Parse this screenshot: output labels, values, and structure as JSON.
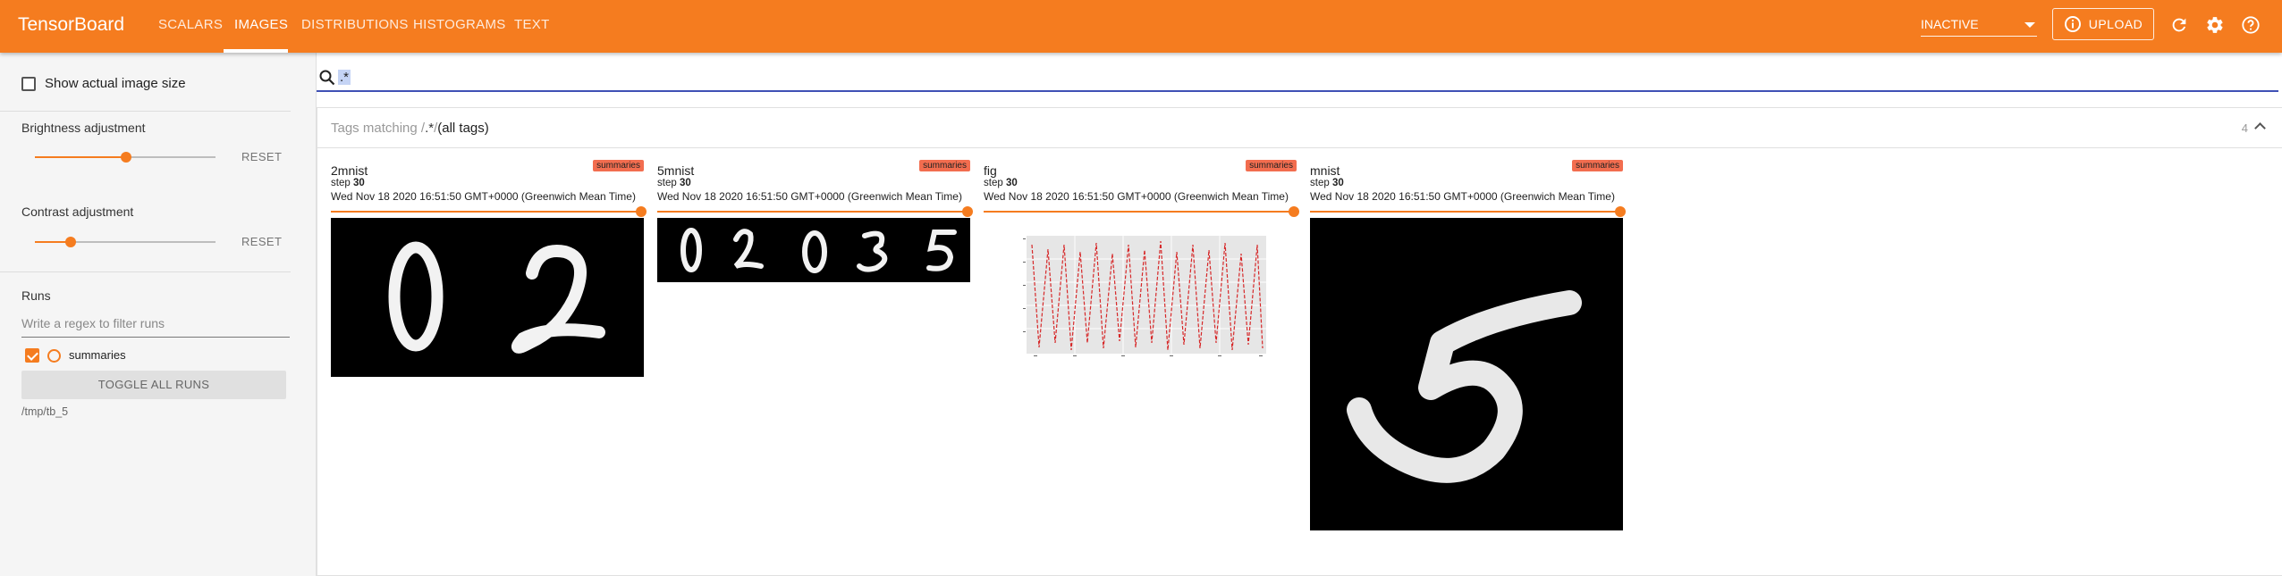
{
  "header": {
    "brand": "TensorBoard",
    "tabs": [
      {
        "label": "SCALARS",
        "active": false
      },
      {
        "label": "IMAGES",
        "active": true
      },
      {
        "label": "DISTRIBUTIONS",
        "active": false
      },
      {
        "label": "HISTOGRAMS",
        "active": false
      },
      {
        "label": "TEXT",
        "active": false
      }
    ],
    "status_select": "INACTIVE",
    "upload_label": "UPLOAD",
    "icons": [
      "info-icon",
      "refresh-icon",
      "settings-gear-icon",
      "help-icon"
    ],
    "accent_color": "#f57c1f"
  },
  "sidebar": {
    "show_actual_size_label": "Show actual image size",
    "show_actual_size_checked": false,
    "brightness": {
      "label": "Brightness adjustment",
      "reset": "RESET",
      "level": 0.5
    },
    "contrast": {
      "label": "Contrast adjustment",
      "reset": "RESET",
      "level": 0.2
    },
    "runs_title": "Runs",
    "filter_placeholder": "Write a regex to filter runs",
    "runs": [
      {
        "name": "summaries",
        "checked": true,
        "color": "#f57c1f"
      }
    ],
    "toggle_all": "TOGGLE ALL RUNS",
    "logdir": "/tmp/tb_5"
  },
  "search": {
    "value": ".*"
  },
  "tag_group": {
    "prefix": "Tags matching /",
    "pattern": ".*",
    "suffix": "/",
    "all_tags": "(all tags)",
    "count": "4"
  },
  "cards": [
    {
      "tag": "2mnist",
      "run": "summaries",
      "step_label": "step",
      "step": "30",
      "time": "Wed Nov 18 2020 16:51:50 GMT+0000 (Greenwich Mean Time)",
      "image": "two mnist digits 0 and 2"
    },
    {
      "tag": "5mnist",
      "run": "summaries",
      "step_label": "step",
      "step": "30",
      "time": "Wed Nov 18 2020 16:51:50 GMT+0000 (Greenwich Mean Time)",
      "image": "five mnist digits 0 2 0 3 5"
    },
    {
      "tag": "fig",
      "run": "summaries",
      "step_label": "step",
      "step": "30",
      "time": "Wed Nov 18 2020 16:51:50 GMT+0000 (Greenwich Mean Time)",
      "image": "matplotlib figure with red oscillating line"
    },
    {
      "tag": "mnist",
      "run": "summaries",
      "step_label": "step",
      "step": "30",
      "time": "Wed Nov 18 2020 16:51:50 GMT+0000 (Greenwich Mean Time)",
      "image": "single mnist digit 5"
    }
  ]
}
